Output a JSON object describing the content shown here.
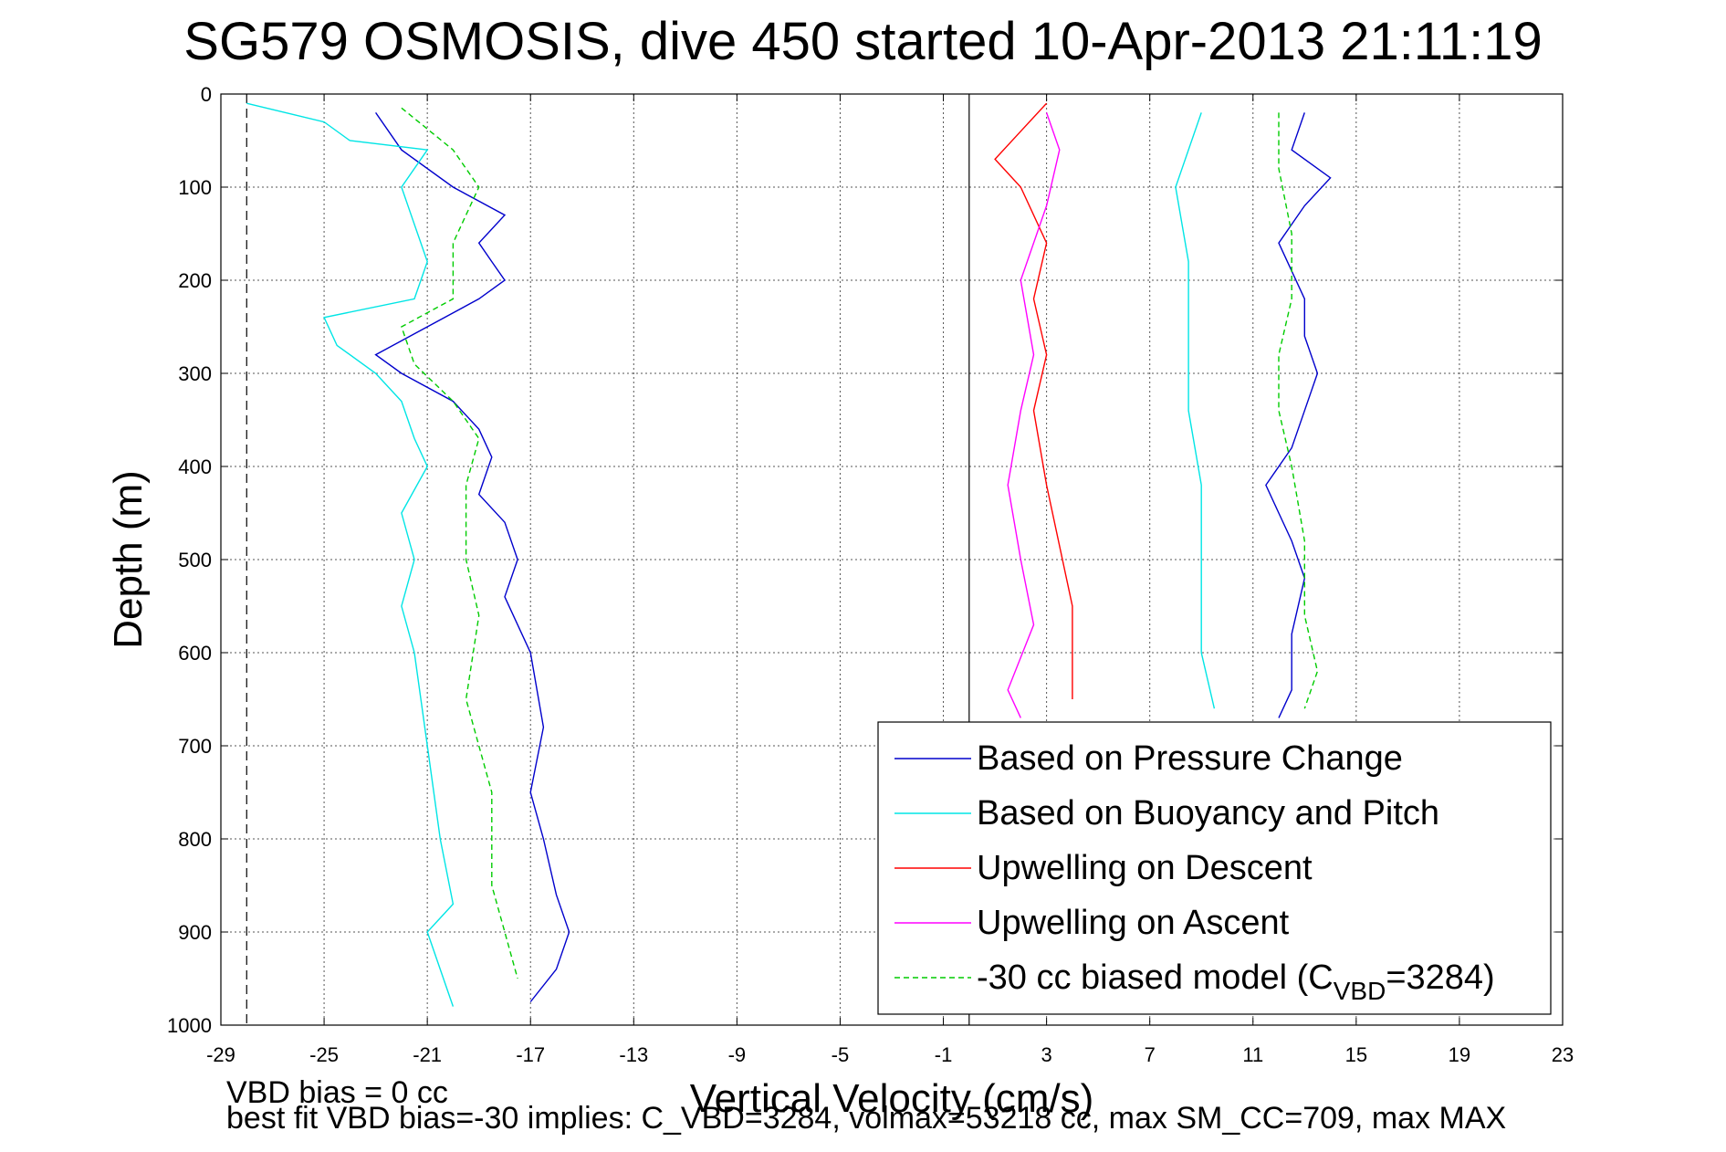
{
  "chart_data": {
    "type": "line",
    "title": "SG579 OSMOSIS, dive 450 started 10-Apr-2013 21:11:19",
    "xlabel": "Vertical Velocity (cm/s)",
    "ylabel": "Depth (m)",
    "xlim": [
      -29,
      23
    ],
    "ylim": [
      0,
      1000
    ],
    "y_reversed": true,
    "grid": true,
    "xticks": [
      "-29",
      "-25",
      "-21",
      "-17",
      "-13",
      "-9",
      "-5",
      "-1",
      "3",
      "7",
      "11",
      "15",
      "19",
      "23"
    ],
    "yticks": [
      "0",
      "100",
      "200",
      "300",
      "400",
      "500",
      "600",
      "700",
      "800",
      "900",
      "1000"
    ],
    "legend_position": "bottom-right",
    "reference_lines": [
      {
        "x": -28,
        "style": "dashed",
        "color": "#000000"
      },
      {
        "x": 0,
        "style": "solid",
        "color": "#000000"
      }
    ],
    "series": [
      {
        "name": "Based on Pressure Change",
        "color": "#0000cc",
        "style": "solid",
        "segments": [
          {
            "x": [
              -23,
              -22,
              -20,
              -18,
              -19,
              -18.5,
              -18,
              -19,
              -21,
              -23,
              -22,
              -20,
              -19,
              -18.5,
              -19,
              -18,
              -17.5,
              -18,
              -17,
              -16.5,
              -17,
              -16.5,
              -16,
              -15.5,
              -16,
              -17
            ],
            "y": [
              20,
              60,
              100,
              130,
              160,
              180,
              200,
              220,
              250,
              280,
              300,
              330,
              360,
              390,
              430,
              460,
              500,
              540,
              600,
              680,
              750,
              800,
              860,
              900,
              940,
              975
            ]
          },
          {
            "x": [
              13,
              12.5,
              14,
              13,
              12,
              13,
              13,
              13.5,
              13,
              12.5,
              11.5,
              12,
              12.5,
              13,
              12.5,
              12.5,
              12
            ],
            "y": [
              20,
              60,
              90,
              120,
              160,
              220,
              260,
              300,
              340,
              380,
              420,
              450,
              480,
              520,
              580,
              640,
              670
            ]
          }
        ]
      },
      {
        "name": "Based on Buoyancy and Pitch",
        "color": "#00e5e5",
        "style": "solid",
        "segments": [
          {
            "x": [
              -28,
              -25,
              -24,
              -21,
              -22,
              -21.5,
              -21,
              -21.5,
              -25,
              -24.5,
              -23,
              -22,
              -21.5,
              -21,
              -22,
              -21.5,
              -22,
              -21.5,
              -21,
              -20.5,
              -20,
              -21,
              -20
            ],
            "y": [
              10,
              30,
              50,
              60,
              100,
              140,
              180,
              220,
              240,
              270,
              300,
              330,
              370,
              400,
              450,
              500,
              550,
              600,
              700,
              800,
              870,
              900,
              980
            ]
          },
          {
            "x": [
              9,
              8.5,
              8,
              8.5,
              8.5,
              8.5,
              9,
              9,
              9,
              9.5
            ],
            "y": [
              20,
              60,
              100,
              180,
              260,
              340,
              420,
              520,
              600,
              660
            ]
          }
        ]
      },
      {
        "name": "Upwelling on Descent",
        "color": "#ff0000",
        "style": "solid",
        "segments": [
          {
            "x": [
              3,
              2,
              1,
              2,
              3,
              2.5,
              3,
              2.5,
              3,
              4,
              4
            ],
            "y": [
              10,
              40,
              70,
              100,
              160,
              220,
              280,
              340,
              420,
              550,
              650
            ]
          }
        ]
      },
      {
        "name": "Upwelling on Ascent",
        "color": "#ff00ff",
        "style": "solid",
        "segments": [
          {
            "x": [
              3,
              3.5,
              3,
              2,
              2.5,
              2,
              1.5,
              2,
              2.5,
              1.5,
              2
            ],
            "y": [
              20,
              60,
              120,
              200,
              280,
              340,
              420,
              500,
              570,
              640,
              670
            ]
          }
        ]
      },
      {
        "name": "-30 cc biased model (C",
        "name_subscript": "VBD",
        "name_suffix": "=3284)",
        "color": "#00cc00",
        "style": "dashed",
        "segments": [
          {
            "x": [
              -22,
              -20,
              -19,
              -20,
              -20,
              -22,
              -21.5,
              -20,
              -19,
              -19.5,
              -19.5,
              -19,
              -19.5,
              -18.5,
              -18.5,
              -18,
              -17.5
            ],
            "y": [
              15,
              60,
              100,
              160,
              220,
              250,
              290,
              330,
              370,
              420,
              500,
              560,
              650,
              750,
              850,
              900,
              950
            ]
          },
          {
            "x": [
              12,
              12,
              12.5,
              12.5,
              12,
              12,
              12.5,
              13,
              13,
              13.5,
              13
            ],
            "y": [
              20,
              80,
              150,
              220,
              280,
              340,
              400,
              480,
              560,
              620,
              660
            ]
          }
        ]
      }
    ]
  },
  "footer": {
    "line1": "VBD bias = 0 cc",
    "line2": "best fit VBD bias=-30 implies: C_VBD=3284, volmax=53218 cc, max SM_CC=709, max MAX"
  }
}
